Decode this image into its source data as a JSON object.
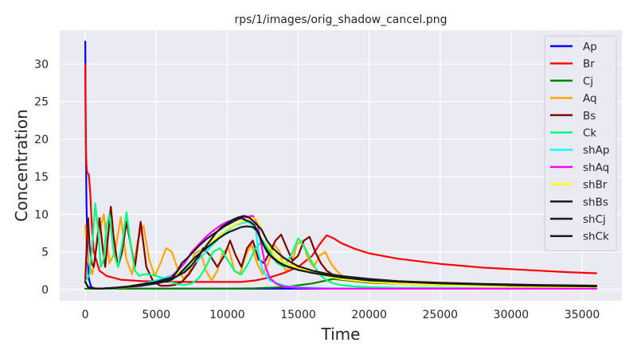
{
  "chart_data": {
    "type": "line",
    "title": "rps/1/images/orig_shadow_cancel.png",
    "xlabel": "Time",
    "ylabel": "Concentration",
    "xlim": [
      -1800,
      37800
    ],
    "ylim": [
      -1.5,
      34.5
    ],
    "xticks": [
      0,
      5000,
      10000,
      15000,
      20000,
      25000,
      30000,
      35000
    ],
    "yticks": [
      0,
      5,
      10,
      15,
      20,
      25,
      30
    ],
    "grid": true,
    "legend_position": "top-right",
    "series": [
      {
        "name": "Ap",
        "color": "#0000ff",
        "x": [
          0,
          30,
          80,
          150,
          250,
          400,
          600,
          900,
          1500,
          3000,
          6000,
          10000,
          12000,
          14000,
          17000,
          20000,
          25000,
          30000,
          36000
        ],
        "y": [
          33,
          22,
          12,
          5,
          1.5,
          0.4,
          0.15,
          0.1,
          0.1,
          0.1,
          0.1,
          0.1,
          0.1,
          0.1,
          0.1,
          0.1,
          0.1,
          0.1,
          0.1
        ]
      },
      {
        "name": "Br",
        "color": "#ff0000",
        "x": [
          0,
          30,
          60,
          100,
          150,
          250,
          350,
          450,
          600,
          1000,
          1500,
          2500,
          4000,
          6000,
          8000,
          10000,
          11000,
          12000,
          13000,
          14000,
          15000,
          16000,
          16500,
          17000,
          17500,
          18000,
          19000,
          20000,
          22000,
          25000,
          28000,
          31000,
          34000,
          36000
        ],
        "y": [
          30,
          22,
          17.5,
          16,
          15.5,
          15.3,
          13,
          9,
          5,
          2.5,
          1.8,
          1.3,
          1.1,
          1.0,
          1.0,
          1.0,
          1.0,
          1.2,
          1.6,
          2.2,
          3.0,
          4.5,
          6.0,
          7.2,
          6.8,
          6.2,
          5.4,
          4.8,
          4.1,
          3.4,
          2.9,
          2.6,
          2.3,
          2.15
        ]
      },
      {
        "name": "Cj",
        "color": "#008000",
        "x": [
          0,
          1000,
          5000,
          10000,
          12000,
          14000,
          16000,
          17500,
          18500,
          20000,
          25000,
          30000,
          36000
        ],
        "y": [
          0.1,
          0.1,
          0.1,
          0.1,
          0.15,
          0.3,
          0.8,
          1.4,
          1.2,
          0.9,
          0.6,
          0.45,
          0.35
        ]
      },
      {
        "name": "Aq",
        "color": "#ffa500",
        "x": [
          0,
          150,
          500,
          900,
          1300,
          1700,
          2100,
          2500,
          2900,
          3300,
          3700,
          4100,
          4500,
          4900,
          5300,
          5700,
          6100,
          6500,
          6900,
          7300,
          7700,
          8100,
          8500,
          8900,
          9300,
          9700,
          10100,
          10500,
          10900,
          11300,
          11700,
          12100,
          12500,
          12900,
          13300,
          13700,
          14100,
          14500,
          14900,
          15300,
          15700,
          16100,
          16500,
          16900,
          17300,
          17700,
          18100,
          18500,
          19000,
          20000,
          22000,
          25000,
          30000,
          36000
        ],
        "y": [
          8.5,
          4,
          2,
          7,
          10,
          3.5,
          5,
          9.6,
          4,
          2,
          6.5,
          8.5,
          4,
          1.8,
          3.5,
          5.5,
          5,
          2.8,
          1.5,
          2.2,
          4.8,
          5.2,
          2.5,
          1.2,
          2.5,
          5,
          5.5,
          2.5,
          2,
          4.5,
          6,
          3.5,
          2,
          3.5,
          6,
          5,
          2.5,
          3,
          6,
          6.5,
          4,
          3,
          4.5,
          5,
          3.5,
          2.5,
          1.8,
          1.5,
          1.3,
          1.1,
          0.8,
          0.6,
          0.4,
          0.3
        ]
      },
      {
        "name": "Bs",
        "color": "#800000",
        "x": [
          0,
          100,
          200,
          300,
          450,
          600,
          800,
          1000,
          1200,
          1400,
          1600,
          1800,
          2000,
          2300,
          2600,
          2900,
          3200,
          3500,
          3900,
          4300,
          4800,
          5300,
          5800,
          6300,
          6800,
          7300,
          7800,
          8300,
          8800,
          9300,
          9800,
          10200,
          10600,
          11000,
          11400,
          11800,
          12200,
          12600,
          13000,
          13400,
          13800,
          14200,
          14600,
          15000,
          15400,
          15800,
          16200,
          16600,
          17000,
          17400,
          17800,
          18300,
          19000,
          20000,
          22000,
          25000,
          30000,
          36000
        ],
        "y": [
          1,
          6,
          9.5,
          6,
          3.5,
          3,
          6,
          9.5,
          6,
          3,
          7,
          11,
          7,
          3,
          5,
          9,
          6,
          3,
          9,
          3,
          1,
          0.5,
          0.5,
          0.6,
          1.0,
          2.0,
          3.5,
          5.5,
          4.5,
          3,
          4.5,
          6.5,
          4.5,
          3,
          5.5,
          6.5,
          4,
          3.5,
          5,
          6.5,
          7.3,
          5.5,
          3.8,
          4.5,
          6.5,
          7,
          5,
          3.5,
          2.5,
          2,
          1.8,
          1.6,
          1.5,
          1.3,
          1.0,
          0.8,
          0.6,
          0.5
        ]
      },
      {
        "name": "Ck",
        "color": "#00ff7f",
        "x": [
          0,
          300,
          500,
          700,
          900,
          1100,
          1300,
          1500,
          1700,
          2000,
          2300,
          2600,
          2900,
          3200,
          3500,
          3800,
          4100,
          4500,
          5000,
          5500,
          6000,
          6500,
          7000,
          7500,
          8000,
          8500,
          9000,
          9500,
          10000,
          10500,
          11000,
          11500,
          12000,
          12500,
          13000,
          13500,
          14000,
          14500,
          15000,
          15500,
          16000,
          16500,
          17000,
          17500,
          18000,
          18500,
          19000,
          20000,
          22000,
          25000,
          30000,
          36000
        ],
        "y": [
          1,
          2,
          6,
          11.5,
          8,
          3,
          4,
          8.5,
          10,
          5,
          3,
          6,
          10.3,
          6,
          2.5,
          1.8,
          2,
          2,
          1.8,
          1.5,
          1.0,
          0.7,
          0.6,
          0.8,
          1.5,
          3,
          5,
          5.5,
          4,
          2.5,
          2,
          3.5,
          5.5,
          6.5,
          5,
          3.5,
          3,
          4.5,
          6.8,
          5.5,
          3.5,
          2,
          1.2,
          0.8,
          0.6,
          0.5,
          0.4,
          0.3,
          0.2,
          0.2,
          0.1,
          0.1
        ]
      },
      {
        "name": "shAp",
        "color": "#00ffff",
        "x": [
          0,
          200,
          500,
          1000,
          2000,
          3000,
          4000,
          5000,
          6000,
          7000,
          8000,
          9000,
          10000,
          10500,
          11000,
          11500,
          12000,
          12200,
          12500,
          13000,
          14000,
          15000,
          17000,
          20000,
          25000,
          30000,
          36000
        ],
        "y": [
          1,
          0.3,
          0.15,
          0.1,
          0.15,
          0.3,
          0.7,
          1.2,
          1.8,
          2.6,
          4,
          6,
          7.8,
          8.5,
          8.8,
          9,
          8.2,
          5,
          2.5,
          1.2,
          0.5,
          0.3,
          0.15,
          0.1,
          0.1,
          0.1,
          0.1
        ]
      },
      {
        "name": "shAq",
        "color": "#ff00ff",
        "x": [
          0,
          200,
          500,
          1000,
          2000,
          3000,
          4000,
          5000,
          6000,
          6500,
          7000,
          7500,
          8000,
          8500,
          9000,
          9500,
          10000,
          10500,
          11000,
          11500,
          11800,
          12100,
          12400,
          12700,
          13000,
          13500,
          14000,
          15000,
          17000,
          20000,
          25000,
          30000,
          36000
        ],
        "y": [
          1,
          0.3,
          0.15,
          0.1,
          0.2,
          0.3,
          0.6,
          1.0,
          1.6,
          2.5,
          3.5,
          5,
          6,
          7,
          7.8,
          8.5,
          9,
          9.3,
          9.5,
          9.7,
          9.8,
          9,
          6,
          3,
          1.5,
          0.7,
          0.4,
          0.2,
          0.1,
          0.1,
          0.1,
          0.1,
          0.1
        ]
      },
      {
        "name": "shBr",
        "color": "#ffff00",
        "x": [
          0,
          200,
          500,
          1000,
          3000,
          5000,
          6000,
          7000,
          8000,
          9000,
          10000,
          11000,
          11500,
          12000,
          12300,
          12700,
          13000,
          13500,
          14000,
          15000,
          16000,
          17000,
          18000,
          20000,
          22000,
          25000,
          30000,
          36000
        ],
        "y": [
          1,
          0.3,
          0.15,
          0.1,
          0.3,
          0.8,
          1.5,
          2.8,
          4.5,
          6.5,
          8,
          9,
          9.3,
          9.5,
          8.5,
          7,
          5.5,
          4.2,
          3.6,
          2.8,
          2.3,
          1.8,
          1.4,
          1.0,
          0.8,
          0.6,
          0.4,
          0.3
        ]
      },
      {
        "name": "shBs",
        "color": "#1a1a1a",
        "x": [
          0,
          200,
          500,
          1000,
          2000,
          3000,
          4000,
          5000,
          5500,
          6000,
          6500,
          7000,
          7500,
          8000,
          8400,
          8800,
          9200,
          9600,
          10000,
          10400,
          10800,
          11200,
          11600,
          12000,
          12400,
          12800,
          13200,
          13600,
          14000,
          14500,
          15000,
          16000,
          17000,
          18000,
          20000,
          22000,
          25000,
          28000,
          32000,
          36000
        ],
        "y": [
          1,
          0.3,
          0.15,
          0.1,
          0.2,
          0.4,
          0.7,
          1.0,
          1.3,
          1.5,
          1.8,
          2.3,
          3.2,
          4.5,
          5.5,
          6.5,
          7.5,
          8.3,
          8.8,
          9.3,
          9.6,
          9.8,
          9.5,
          8.8,
          8,
          6.5,
          5.5,
          4.8,
          4.2,
          3.6,
          3.1,
          2.5,
          2.1,
          1.8,
          1.4,
          1.1,
          0.9,
          0.75,
          0.6,
          0.5
        ]
      },
      {
        "name": "shCj",
        "color": "#1a1a1a",
        "x": [
          0,
          200,
          500,
          1000,
          2000,
          3000,
          4000,
          5000,
          6000,
          6400,
          6800,
          7200,
          7600,
          8000,
          8300,
          8600,
          8900,
          9200,
          9500,
          9800,
          10100,
          10400,
          10700,
          11000,
          11300,
          11600,
          11900,
          12200,
          12600,
          13000,
          13500,
          14000,
          15000,
          16000,
          18000,
          20000,
          25000,
          30000,
          36000
        ],
        "y": [
          1,
          0.3,
          0.15,
          0.1,
          0.2,
          0.35,
          0.6,
          0.9,
          1.4,
          2.2,
          3.5,
          4.2,
          5.0,
          5.8,
          6.3,
          6.8,
          7.2,
          7.6,
          8.0,
          8.4,
          8.7,
          9.0,
          9.3,
          9.5,
          9.2,
          9.0,
          8.6,
          7.5,
          5.8,
          4.6,
          3.8,
          3.2,
          2.6,
          2.2,
          1.6,
          1.2,
          0.8,
          0.55,
          0.4
        ]
      },
      {
        "name": "shCk",
        "color": "#1a1a1a",
        "x": [
          0,
          200,
          500,
          1000,
          2000,
          3000,
          4000,
          5000,
          6000,
          6500,
          7000,
          7400,
          7800,
          8200,
          8600,
          9000,
          9400,
          9800,
          10200,
          10600,
          11000,
          11400,
          11800,
          12100,
          12400,
          12800,
          13200,
          13600,
          14000,
          15000,
          16000,
          17000,
          18000,
          20000,
          22000,
          25000,
          28000,
          32000,
          36000
        ],
        "y": [
          1,
          0.3,
          0.15,
          0.1,
          0.2,
          0.35,
          0.5,
          0.8,
          1.2,
          1.8,
          2.8,
          3.6,
          4.4,
          5.0,
          5.6,
          6.2,
          6.8,
          7.3,
          7.7,
          8.0,
          8.3,
          8.4,
          8.3,
          7.8,
          6.5,
          5.0,
          4.2,
          3.6,
          3.2,
          2.6,
          2.2,
          1.9,
          1.6,
          1.3,
          1.05,
          0.85,
          0.7,
          0.55,
          0.45
        ]
      }
    ]
  }
}
